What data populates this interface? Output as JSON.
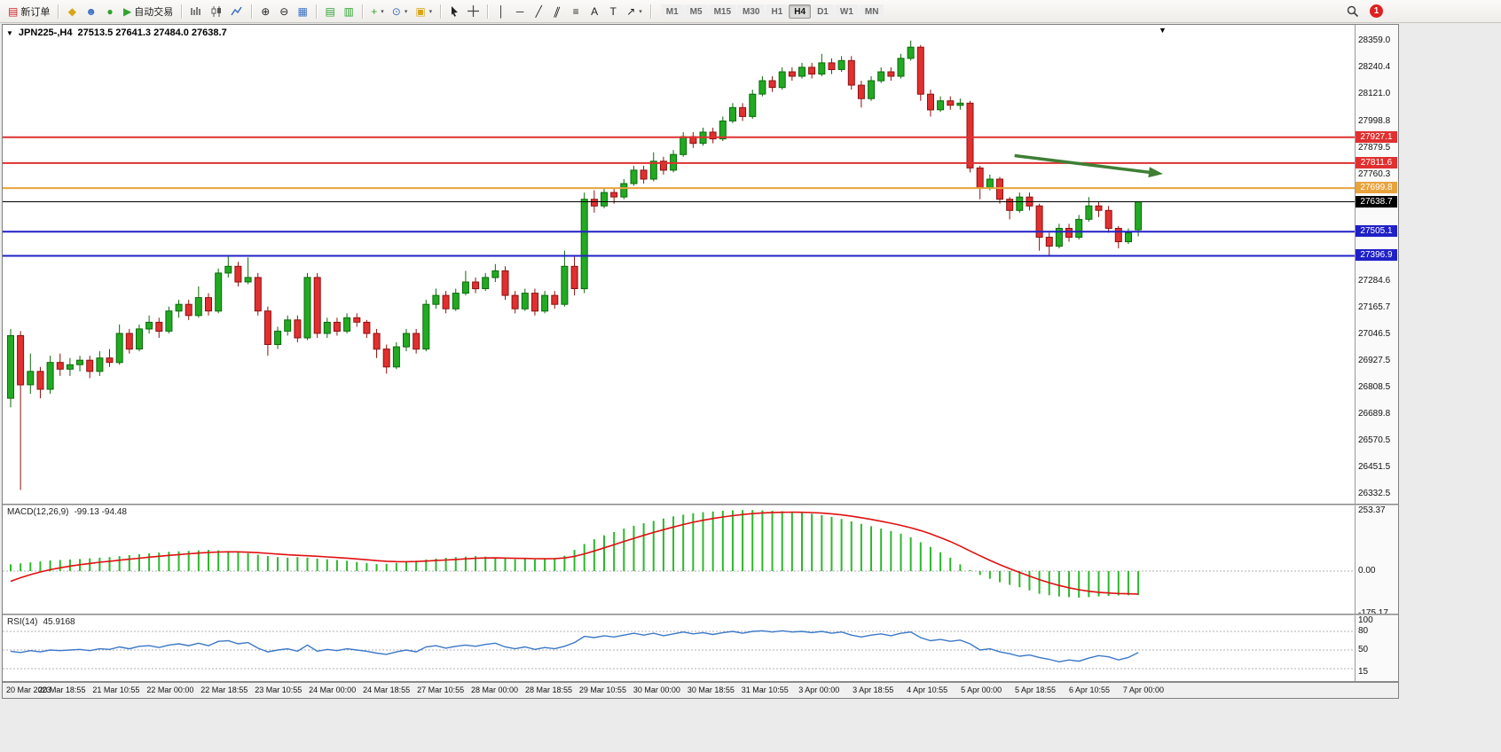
{
  "toolbar": {
    "new_order_label": "新订单",
    "autotrading_label": "自动交易",
    "timeframes": [
      "M1",
      "M5",
      "M15",
      "M30",
      "H1",
      "H4",
      "D1",
      "W1",
      "MN"
    ],
    "active_timeframe": "H4",
    "notification_count": "1"
  },
  "icons": {
    "new_order": "▤",
    "editor": "◆",
    "profile": "☻",
    "community": "●",
    "autotrade_play": "▶",
    "zoom_in": "⊕",
    "zoom_out": "⊖",
    "tile": "▦",
    "cascade": "▤",
    "stack": "▥",
    "indicator_add": "+",
    "periods_clock": "⊙",
    "template": "▣",
    "crosshair": "+",
    "vline": "│",
    "hline": "─",
    "tline": "╱",
    "channel": "∥",
    "fibo": "≡",
    "text_tool": "A",
    "label_tool": "T",
    "arrows_tool": "↗",
    "caret": "▾",
    "caret_down": "▼"
  },
  "chart": {
    "title": "JPN225-,H4",
    "ohlc": "27513.5 27641.3 27484.0 27638.7"
  },
  "chart_data": {
    "type": "candlestick",
    "symbol": "JPN225-",
    "timeframe": "H4",
    "open": 27513.5,
    "high": 27641.3,
    "low": 27484.0,
    "close": 27638.7,
    "colors": {
      "up": "#22aa22",
      "up_stroke": "#0b6a0b",
      "down": "#e03030",
      "down_stroke": "#8f1010",
      "macd_hist": "#2db82d",
      "macd_signal": "#e01010",
      "rsi_line": "#3c78c8",
      "arrow": "#3e7f34"
    },
    "candles": [
      [
        26760,
        27070,
        26720,
        27040
      ],
      [
        27040,
        27060,
        26350,
        26820
      ],
      [
        26820,
        26960,
        26780,
        26880
      ],
      [
        26880,
        26900,
        26760,
        26800
      ],
      [
        26800,
        26950,
        26780,
        26920
      ],
      [
        26920,
        26960,
        26860,
        26890
      ],
      [
        26890,
        26940,
        26860,
        26910
      ],
      [
        26910,
        26950,
        26880,
        26930
      ],
      [
        26930,
        26950,
        26850,
        26880
      ],
      [
        26880,
        26970,
        26860,
        26940
      ],
      [
        26940,
        26980,
        26900,
        26920
      ],
      [
        26920,
        27090,
        26910,
        27050
      ],
      [
        27050,
        27070,
        26960,
        26980
      ],
      [
        26980,
        27090,
        26970,
        27070
      ],
      [
        27070,
        27130,
        27050,
        27100
      ],
      [
        27100,
        27120,
        27030,
        27060
      ],
      [
        27060,
        27170,
        27050,
        27150
      ],
      [
        27150,
        27200,
        27120,
        27180
      ],
      [
        27180,
        27200,
        27110,
        27130
      ],
      [
        27130,
        27260,
        27120,
        27210
      ],
      [
        27210,
        27230,
        27130,
        27150
      ],
      [
        27150,
        27340,
        27140,
        27320
      ],
      [
        27320,
        27400,
        27300,
        27350
      ],
      [
        27350,
        27370,
        27260,
        27280
      ],
      [
        27280,
        27390,
        27270,
        27300
      ],
      [
        27300,
        27320,
        27130,
        27150
      ],
      [
        27150,
        27170,
        26950,
        27000
      ],
      [
        27000,
        27080,
        26980,
        27060
      ],
      [
        27060,
        27130,
        27040,
        27110
      ],
      [
        27110,
        27130,
        27010,
        27030
      ],
      [
        27030,
        27320,
        27020,
        27300
      ],
      [
        27300,
        27320,
        27030,
        27050
      ],
      [
        27050,
        27120,
        27030,
        27100
      ],
      [
        27100,
        27120,
        27040,
        27060
      ],
      [
        27060,
        27140,
        27050,
        27120
      ],
      [
        27120,
        27140,
        27080,
        27100
      ],
      [
        27100,
        27110,
        27030,
        27050
      ],
      [
        27050,
        27070,
        26940,
        26980
      ],
      [
        26980,
        27000,
        26870,
        26900
      ],
      [
        26900,
        27010,
        26890,
        26990
      ],
      [
        26990,
        27070,
        26970,
        27050
      ],
      [
        27050,
        27070,
        26960,
        26980
      ],
      [
        26980,
        27200,
        26970,
        27180
      ],
      [
        27180,
        27250,
        27160,
        27220
      ],
      [
        27220,
        27240,
        27140,
        27160
      ],
      [
        27160,
        27250,
        27150,
        27230
      ],
      [
        27230,
        27330,
        27220,
        27280
      ],
      [
        27280,
        27300,
        27230,
        27250
      ],
      [
        27250,
        27320,
        27240,
        27300
      ],
      [
        27300,
        27360,
        27280,
        27330
      ],
      [
        27330,
        27350,
        27200,
        27220
      ],
      [
        27220,
        27240,
        27140,
        27160
      ],
      [
        27160,
        27250,
        27150,
        27230
      ],
      [
        27230,
        27250,
        27130,
        27150
      ],
      [
        27150,
        27240,
        27140,
        27220
      ],
      [
        27220,
        27240,
        27160,
        27180
      ],
      [
        27180,
        27420,
        27170,
        27350
      ],
      [
        27350,
        27400,
        27220,
        27250
      ],
      [
        27250,
        27680,
        27230,
        27650
      ],
      [
        27650,
        27690,
        27590,
        27620
      ],
      [
        27620,
        27700,
        27610,
        27680
      ],
      [
        27680,
        27700,
        27630,
        27660
      ],
      [
        27660,
        27740,
        27650,
        27720
      ],
      [
        27720,
        27800,
        27710,
        27780
      ],
      [
        27780,
        27800,
        27720,
        27740
      ],
      [
        27740,
        27860,
        27730,
        27820
      ],
      [
        27820,
        27840,
        27760,
        27780
      ],
      [
        27780,
        27870,
        27770,
        27850
      ],
      [
        27850,
        27950,
        27840,
        27930
      ],
      [
        27930,
        27950,
        27880,
        27900
      ],
      [
        27900,
        27970,
        27890,
        27950
      ],
      [
        27950,
        27970,
        27900,
        27920
      ],
      [
        27920,
        28020,
        27910,
        28000
      ],
      [
        28000,
        28080,
        27990,
        28060
      ],
      [
        28060,
        28080,
        28000,
        28020
      ],
      [
        28020,
        28140,
        28010,
        28120
      ],
      [
        28120,
        28200,
        28110,
        28180
      ],
      [
        28180,
        28200,
        28130,
        28150
      ],
      [
        28150,
        28240,
        28140,
        28220
      ],
      [
        28220,
        28240,
        28180,
        28200
      ],
      [
        28200,
        28260,
        28190,
        28240
      ],
      [
        28240,
        28260,
        28190,
        28210
      ],
      [
        28210,
        28300,
        28200,
        28260
      ],
      [
        28260,
        28280,
        28210,
        28230
      ],
      [
        28230,
        28290,
        28220,
        28270
      ],
      [
        28270,
        28290,
        28140,
        28160
      ],
      [
        28160,
        28180,
        28060,
        28100
      ],
      [
        28100,
        28200,
        28090,
        28180
      ],
      [
        28180,
        28240,
        28170,
        28220
      ],
      [
        28220,
        28240,
        28180,
        28200
      ],
      [
        28200,
        28300,
        28190,
        28280
      ],
      [
        28280,
        28360,
        28270,
        28330
      ],
      [
        28330,
        28340,
        28090,
        28120
      ],
      [
        28120,
        28140,
        28020,
        28050
      ],
      [
        28050,
        28110,
        28040,
        28090
      ],
      [
        28090,
        28110,
        28050,
        28070
      ],
      [
        28070,
        28100,
        28050,
        28080
      ],
      [
        28080,
        28090,
        27770,
        27790
      ],
      [
        27790,
        27800,
        27650,
        27700
      ],
      [
        27700,
        27760,
        27690,
        27740
      ],
      [
        27740,
        27750,
        27630,
        27650
      ],
      [
        27650,
        27660,
        27560,
        27600
      ],
      [
        27600,
        27680,
        27590,
        27660
      ],
      [
        27660,
        27680,
        27600,
        27620
      ],
      [
        27620,
        27630,
        27420,
        27480
      ],
      [
        27480,
        27500,
        27400,
        27440
      ],
      [
        27440,
        27540,
        27430,
        27520
      ],
      [
        27520,
        27540,
        27460,
        27480
      ],
      [
        27480,
        27580,
        27470,
        27560
      ],
      [
        27560,
        27660,
        27550,
        27620
      ],
      [
        27620,
        27640,
        27570,
        27600
      ],
      [
        27600,
        27620,
        27500,
        27520
      ],
      [
        27520,
        27530,
        27430,
        27460
      ],
      [
        27460,
        27520,
        27450,
        27500
      ],
      [
        27513.5,
        27641.3,
        27484.0,
        27638.7
      ]
    ],
    "price_axis_labels": [
      "28359.0",
      "28240.4",
      "28121.0",
      "27998.8",
      "27879.5",
      "27760.3",
      "27284.6",
      "27165.7",
      "27046.5",
      "26927.5",
      "26808.5",
      "26689.8",
      "26570.5",
      "26451.5",
      "26332.5"
    ],
    "price_lines": [
      {
        "value": 27927.1,
        "label": "27927.1",
        "color": "#e03030",
        "width": 2
      },
      {
        "value": 27811.6,
        "label": "27811.6",
        "color": "#e03030",
        "width": 2
      },
      {
        "value": 27699.8,
        "label": "27699.8",
        "color": "#e8a33d",
        "width": 2
      },
      {
        "value": 27638.7,
        "label": "27638.7",
        "color": "#000000",
        "width": 1
      },
      {
        "value": 27505.1,
        "label": "27505.1",
        "color": "#2020c8",
        "width": 2
      },
      {
        "value": 27396.9,
        "label": "27396.9",
        "color": "#2020c8",
        "width": 2
      }
    ],
    "arrow": {
      "from_index": 101.5,
      "from_price": 27845,
      "to_index": 116.5,
      "to_price": 27763,
      "color": "#3e7f34"
    },
    "time_labels": [
      "20 Mar 2023",
      "20 Mar 18:55",
      "21 Mar 10:55",
      "22 Mar 00:00",
      "22 Mar 18:55",
      "23 Mar 10:55",
      "24 Mar 00:00",
      "24 Mar 18:55",
      "27 Mar 10:55",
      "28 Mar 00:00",
      "28 Mar 18:55",
      "29 Mar 10:55",
      "30 Mar 00:00",
      "30 Mar 18:55",
      "31 Mar 10:55",
      "3 Apr 00:00",
      "3 Apr 18:55",
      "4 Apr 10:55",
      "5 Apr 00:00",
      "5 Apr 18:55",
      "6 Apr 10:55",
      "7 Apr 00:00"
    ],
    "macd": {
      "name": "MACD(12,26,9)",
      "values_text": "-99.13 -94.48",
      "axis_labels": [
        "253.37",
        "0.00",
        "-175.17"
      ],
      "histogram": [
        28,
        32,
        36,
        40,
        44,
        46,
        48,
        50,
        53,
        56,
        58,
        62,
        66,
        70,
        74,
        77,
        80,
        82,
        84,
        86,
        88,
        86,
        83,
        79,
        74,
        68,
        62,
        58,
        56,
        58,
        56,
        52,
        49,
        46,
        43,
        38,
        33,
        29,
        30,
        34,
        38,
        43,
        48,
        52,
        55,
        58,
        60,
        62,
        60,
        56,
        52,
        49,
        50,
        48,
        50,
        54,
        64,
        88,
        112,
        132,
        148,
        162,
        176,
        188,
        198,
        208,
        218,
        227,
        234,
        240,
        244,
        247,
        250,
        252,
        253,
        253.37,
        252,
        250,
        248,
        245,
        242,
        238,
        232,
        225,
        216,
        206,
        196,
        186,
        176,
        166,
        155,
        140,
        120,
        100,
        78,
        56,
        28,
        4,
        -16,
        -32,
        -46,
        -57,
        -67,
        -80,
        -94,
        -100,
        -105,
        -108,
        -110,
        -108,
        -105,
        -103,
        -101,
        -100,
        -99.13
      ]
    },
    "rsi": {
      "name": "RSI(14)",
      "value_text": "45.9168",
      "axis_labels": [
        "100",
        "80",
        "50",
        "15"
      ],
      "levels": [
        80,
        50,
        20
      ],
      "values": [
        48,
        46,
        49,
        47,
        50,
        49,
        50,
        51,
        49,
        52,
        51,
        55,
        52,
        56,
        57,
        54,
        58,
        60,
        57,
        61,
        57,
        64,
        65,
        60,
        62,
        53,
        47,
        50,
        52,
        48,
        58,
        48,
        51,
        49,
        52,
        50,
        48,
        45,
        43,
        47,
        50,
        47,
        55,
        57,
        53,
        56,
        58,
        56,
        59,
        61,
        55,
        52,
        55,
        51,
        54,
        52,
        56,
        62,
        72,
        70,
        73,
        71,
        74,
        77,
        74,
        77,
        73,
        76,
        79,
        76,
        78,
        75,
        78,
        80,
        77,
        80,
        81,
        79,
        81,
        79,
        80,
        78,
        80,
        77,
        79,
        74,
        71,
        74,
        76,
        73,
        77,
        79,
        70,
        65,
        67,
        64,
        66,
        60,
        50,
        52,
        47,
        44,
        40,
        42,
        38,
        35,
        31,
        34,
        32,
        37,
        41,
        39,
        34,
        38,
        45.92
      ]
    }
  }
}
